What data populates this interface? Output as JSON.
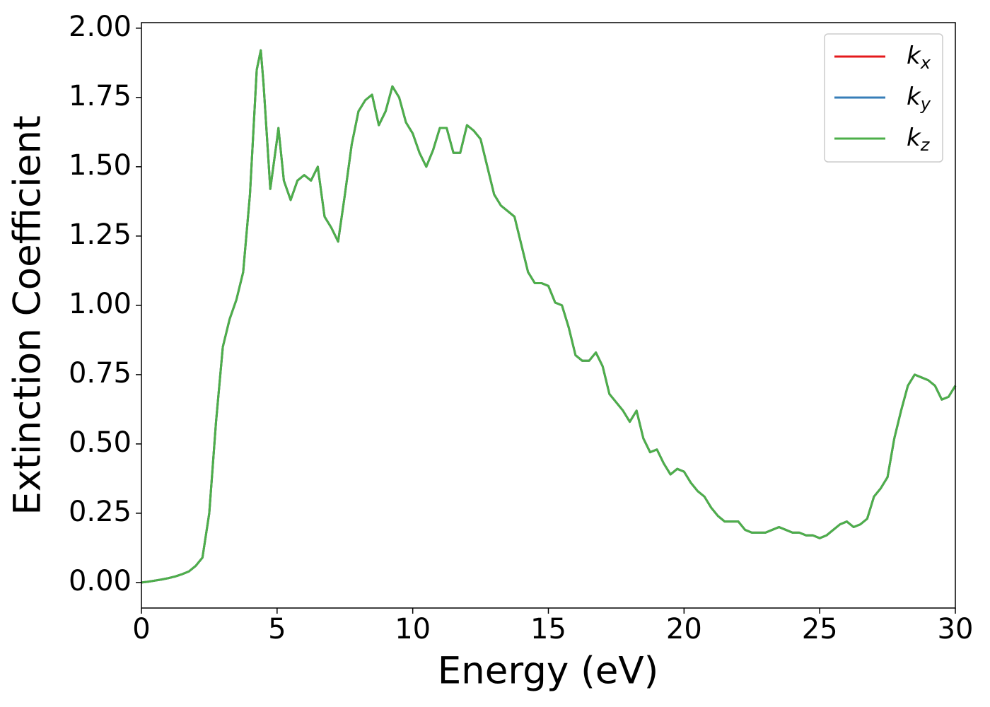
{
  "chart_data": {
    "type": "line",
    "xlabel": "Energy (eV)",
    "ylabel": "Extinction Coefficient",
    "x": [
      0,
      0.25,
      0.5,
      0.75,
      1,
      1.25,
      1.5,
      1.75,
      2,
      2.25,
      2.5,
      2.75,
      3,
      3.25,
      3.5,
      3.75,
      4,
      4.25,
      4.4,
      4.5,
      4.75,
      5,
      5.05,
      5.25,
      5.5,
      5.75,
      6,
      6.25,
      6.5,
      6.75,
      7,
      7.25,
      7.5,
      7.75,
      8,
      8.25,
      8.5,
      8.75,
      9,
      9.25,
      9.5,
      9.75,
      10,
      10.25,
      10.5,
      10.75,
      11,
      11.25,
      11.5,
      11.75,
      12,
      12.25,
      12.5,
      12.75,
      13,
      13.25,
      13.5,
      13.75,
      14,
      14.25,
      14.5,
      14.75,
      15,
      15.25,
      15.5,
      15.75,
      16,
      16.25,
      16.5,
      16.75,
      17,
      17.25,
      17.5,
      17.75,
      18,
      18.25,
      18.5,
      18.75,
      19,
      19.25,
      19.5,
      19.75,
      20,
      20.25,
      20.5,
      20.75,
      21,
      21.25,
      21.5,
      21.75,
      22,
      22.25,
      22.5,
      22.75,
      23,
      23.25,
      23.5,
      23.75,
      24,
      24.25,
      24.5,
      24.75,
      25,
      25.25,
      25.5,
      25.75,
      26,
      26.25,
      26.5,
      26.75,
      27,
      27.25,
      27.5,
      27.75,
      28,
      28.25,
      28.5,
      28.75,
      29,
      29.25,
      29.5,
      29.75,
      30
    ],
    "series": [
      {
        "name": "kx",
        "color": "#e41a1c",
        "values": [
          0,
          0.003,
          0.007,
          0.011,
          0.016,
          0.022,
          0.03,
          0.04,
          0.06,
          0.09,
          0.25,
          0.58,
          0.85,
          0.95,
          1.02,
          1.12,
          1.4,
          1.85,
          1.92,
          1.8,
          1.42,
          1.6,
          1.64,
          1.45,
          1.38,
          1.45,
          1.47,
          1.45,
          1.5,
          1.32,
          1.28,
          1.23,
          1.4,
          1.58,
          1.7,
          1.74,
          1.76,
          1.65,
          1.7,
          1.79,
          1.75,
          1.66,
          1.62,
          1.55,
          1.5,
          1.56,
          1.64,
          1.64,
          1.55,
          1.55,
          1.65,
          1.63,
          1.6,
          1.5,
          1.4,
          1.36,
          1.34,
          1.32,
          1.22,
          1.12,
          1.08,
          1.08,
          1.07,
          1.01,
          1,
          0.92,
          0.82,
          0.8,
          0.8,
          0.83,
          0.78,
          0.68,
          0.65,
          0.62,
          0.58,
          0.62,
          0.52,
          0.47,
          0.48,
          0.43,
          0.39,
          0.41,
          0.4,
          0.36,
          0.33,
          0.31,
          0.27,
          0.24,
          0.22,
          0.22,
          0.22,
          0.19,
          0.18,
          0.18,
          0.18,
          0.19,
          0.2,
          0.19,
          0.18,
          0.18,
          0.17,
          0.17,
          0.16,
          0.17,
          0.19,
          0.21,
          0.22,
          0.2,
          0.21,
          0.23,
          0.31,
          0.34,
          0.38,
          0.52,
          0.62,
          0.71,
          0.75,
          0.74,
          0.73,
          0.71,
          0.66,
          0.67,
          0.71
        ]
      },
      {
        "name": "ky",
        "color": "#377eb8",
        "values": [
          0,
          0.003,
          0.007,
          0.011,
          0.016,
          0.022,
          0.03,
          0.04,
          0.06,
          0.09,
          0.25,
          0.58,
          0.85,
          0.95,
          1.02,
          1.12,
          1.4,
          1.85,
          1.92,
          1.8,
          1.42,
          1.6,
          1.64,
          1.45,
          1.38,
          1.45,
          1.47,
          1.45,
          1.5,
          1.32,
          1.28,
          1.23,
          1.4,
          1.58,
          1.7,
          1.74,
          1.76,
          1.65,
          1.7,
          1.79,
          1.75,
          1.66,
          1.62,
          1.55,
          1.5,
          1.56,
          1.64,
          1.64,
          1.55,
          1.55,
          1.65,
          1.63,
          1.6,
          1.5,
          1.4,
          1.36,
          1.34,
          1.32,
          1.22,
          1.12,
          1.08,
          1.08,
          1.07,
          1.01,
          1,
          0.92,
          0.82,
          0.8,
          0.8,
          0.83,
          0.78,
          0.68,
          0.65,
          0.62,
          0.58,
          0.62,
          0.52,
          0.47,
          0.48,
          0.43,
          0.39,
          0.41,
          0.4,
          0.36,
          0.33,
          0.31,
          0.27,
          0.24,
          0.22,
          0.22,
          0.22,
          0.19,
          0.18,
          0.18,
          0.18,
          0.19,
          0.2,
          0.19,
          0.18,
          0.18,
          0.17,
          0.17,
          0.16,
          0.17,
          0.19,
          0.21,
          0.22,
          0.2,
          0.21,
          0.23,
          0.31,
          0.34,
          0.38,
          0.52,
          0.62,
          0.71,
          0.75,
          0.74,
          0.73,
          0.71,
          0.66,
          0.67,
          0.71
        ]
      },
      {
        "name": "kz",
        "color": "#4daf4a",
        "values": [
          0,
          0.003,
          0.007,
          0.011,
          0.016,
          0.022,
          0.03,
          0.04,
          0.06,
          0.09,
          0.25,
          0.58,
          0.85,
          0.95,
          1.02,
          1.12,
          1.4,
          1.85,
          1.92,
          1.8,
          1.42,
          1.6,
          1.64,
          1.45,
          1.38,
          1.45,
          1.47,
          1.45,
          1.5,
          1.32,
          1.28,
          1.23,
          1.4,
          1.58,
          1.7,
          1.74,
          1.76,
          1.65,
          1.7,
          1.79,
          1.75,
          1.66,
          1.62,
          1.55,
          1.5,
          1.56,
          1.64,
          1.64,
          1.55,
          1.55,
          1.65,
          1.63,
          1.6,
          1.5,
          1.4,
          1.36,
          1.34,
          1.32,
          1.22,
          1.12,
          1.08,
          1.08,
          1.07,
          1.01,
          1,
          0.92,
          0.82,
          0.8,
          0.8,
          0.83,
          0.78,
          0.68,
          0.65,
          0.62,
          0.58,
          0.62,
          0.52,
          0.47,
          0.48,
          0.43,
          0.39,
          0.41,
          0.4,
          0.36,
          0.33,
          0.31,
          0.27,
          0.24,
          0.22,
          0.22,
          0.22,
          0.19,
          0.18,
          0.18,
          0.18,
          0.19,
          0.2,
          0.19,
          0.18,
          0.18,
          0.17,
          0.17,
          0.16,
          0.17,
          0.19,
          0.21,
          0.22,
          0.2,
          0.21,
          0.23,
          0.31,
          0.34,
          0.38,
          0.52,
          0.62,
          0.71,
          0.75,
          0.74,
          0.73,
          0.71,
          0.66,
          0.67,
          0.71
        ]
      }
    ],
    "xlim": [
      0,
      30
    ],
    "xticks": [
      0,
      5,
      10,
      15,
      20,
      25,
      30
    ],
    "ylim": [
      -0.092,
      2.02
    ],
    "yticks": [
      {
        "value": 0,
        "label": "0.00"
      },
      {
        "value": 0.25,
        "label": "0.25"
      },
      {
        "value": 0.5,
        "label": "0.50"
      },
      {
        "value": 0.75,
        "label": "0.75"
      },
      {
        "value": 1,
        "label": "1.00"
      },
      {
        "value": 1.25,
        "label": "1.25"
      },
      {
        "value": 1.5,
        "label": "1.50"
      },
      {
        "value": 1.75,
        "label": "1.75"
      },
      {
        "value": 2,
        "label": "2.00"
      }
    ],
    "legend": "upper right",
    "grid": false
  }
}
